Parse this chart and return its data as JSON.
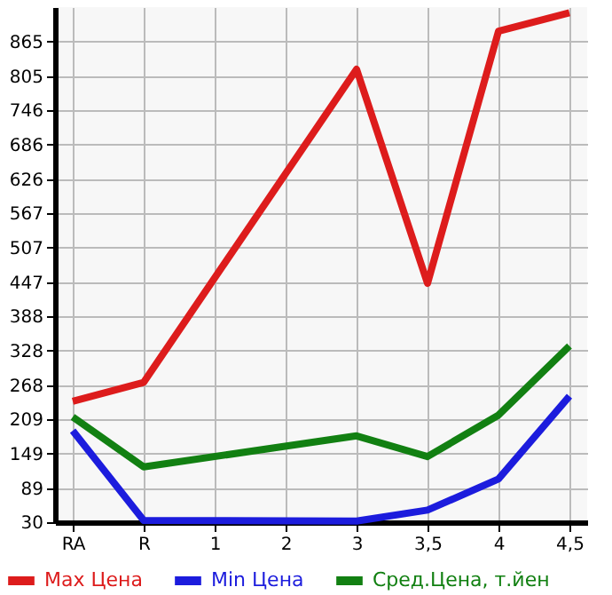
{
  "chart_data": {
    "type": "line",
    "categories": [
      "RA",
      "R",
      "1",
      "2",
      "3",
      "3,5",
      "4",
      "4,5"
    ],
    "series": [
      {
        "name": "Max Цена",
        "color": "#dd1c1c",
        "values": [
          240,
          273,
          null,
          null,
          817,
          445,
          883,
          915
        ]
      },
      {
        "name": "Min Цена",
        "color": "#1c1cdd",
        "values": [
          189,
          33,
          null,
          null,
          32,
          51,
          105,
          249
        ]
      },
      {
        "name": "Сред.Цена, т.йен",
        "color": "#128012",
        "values": [
          213,
          126,
          null,
          null,
          180,
          144,
          216,
          336
        ]
      }
    ],
    "ylim": [
      30,
      925
    ],
    "yticks": [
      30,
      89,
      149,
      209,
      268,
      328,
      388,
      447,
      507,
      567,
      626,
      686,
      746,
      805,
      865
    ],
    "grid": true,
    "legend": "bottom",
    "line_style": "solid",
    "marker": "none"
  }
}
